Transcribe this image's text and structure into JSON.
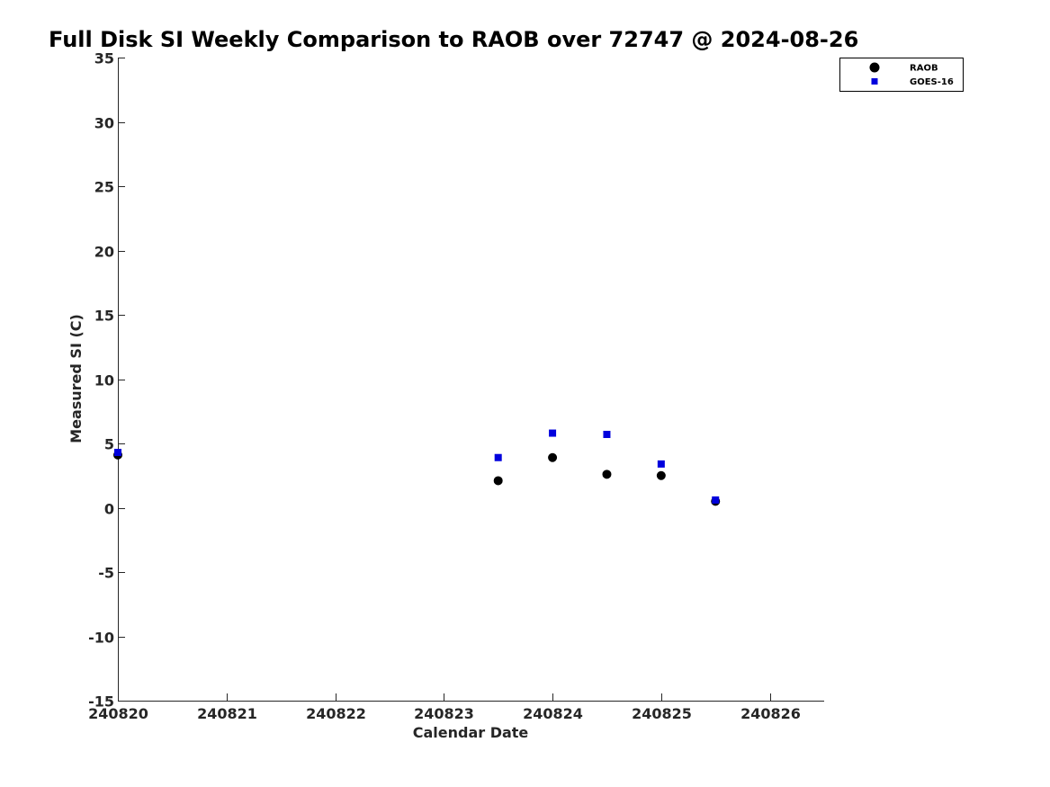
{
  "chart_data": {
    "type": "scatter",
    "title": "Full Disk SI Weekly Comparison to RAOB over 72747 @ 2024-08-26",
    "xlabel": "Calendar Date",
    "ylabel": "Measured SI (C)",
    "xlim": [
      240820,
      240826.5
    ],
    "ylim": [
      -15,
      35
    ],
    "x_ticks": [
      240820,
      240821,
      240822,
      240823,
      240824,
      240825,
      240826
    ],
    "x_tick_labels": [
      "240820",
      "240821",
      "240822",
      "240823",
      "240824",
      "240825",
      "240826"
    ],
    "y_ticks": [
      -15,
      -10,
      -5,
      0,
      5,
      10,
      15,
      20,
      25,
      30,
      35
    ],
    "y_tick_labels": [
      "-15",
      "-10",
      "-5",
      "0",
      "5",
      "10",
      "15",
      "20",
      "25",
      "30",
      "35"
    ],
    "grid": false,
    "legend_position": "top-right",
    "series": [
      {
        "name": "RAOB",
        "marker": "circle",
        "color": "#000000",
        "x": [
          240820,
          240823.5,
          240824,
          240824.5,
          240825,
          240825.5
        ],
        "y": [
          4.1,
          2.1,
          3.9,
          2.6,
          2.5,
          0.5
        ]
      },
      {
        "name": "GOES-16",
        "marker": "square",
        "color": "#0000dd",
        "x": [
          240820,
          240823.5,
          240824,
          240824.5,
          240825,
          240825.5
        ],
        "y": [
          4.3,
          3.9,
          5.8,
          5.7,
          3.4,
          0.6
        ]
      }
    ]
  }
}
